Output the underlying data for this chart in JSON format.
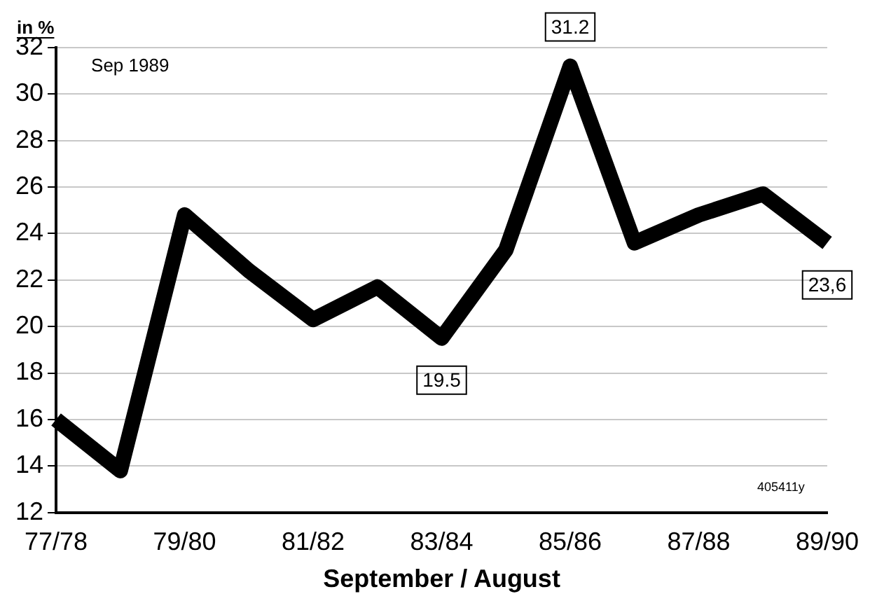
{
  "chart_data": {
    "type": "line",
    "xlabel": "September / August",
    "ylabel": "in %",
    "categories": [
      "77/78",
      null,
      "79/80",
      null,
      "81/82",
      null,
      "83/84",
      null,
      "85/86",
      null,
      "87/88",
      null,
      "89/90"
    ],
    "values": [
      16.0,
      13.8,
      24.8,
      22.4,
      20.3,
      21.7,
      19.5,
      23.3,
      31.2,
      23.6,
      24.8,
      25.7,
      23.6
    ],
    "value_labels": [
      null,
      null,
      null,
      null,
      null,
      null,
      "19.5",
      null,
      "31.2",
      null,
      null,
      null,
      "23,6"
    ],
    "color": "#000000",
    "marker": "none",
    "line_style": "solid",
    "ylim": [
      12,
      32
    ],
    "yticks": [
      12,
      14,
      16,
      18,
      20,
      22,
      24,
      26,
      28,
      30,
      32
    ],
    "grid": "y",
    "legend": false,
    "annotations": [
      "Sep 1989",
      "405411y"
    ]
  }
}
